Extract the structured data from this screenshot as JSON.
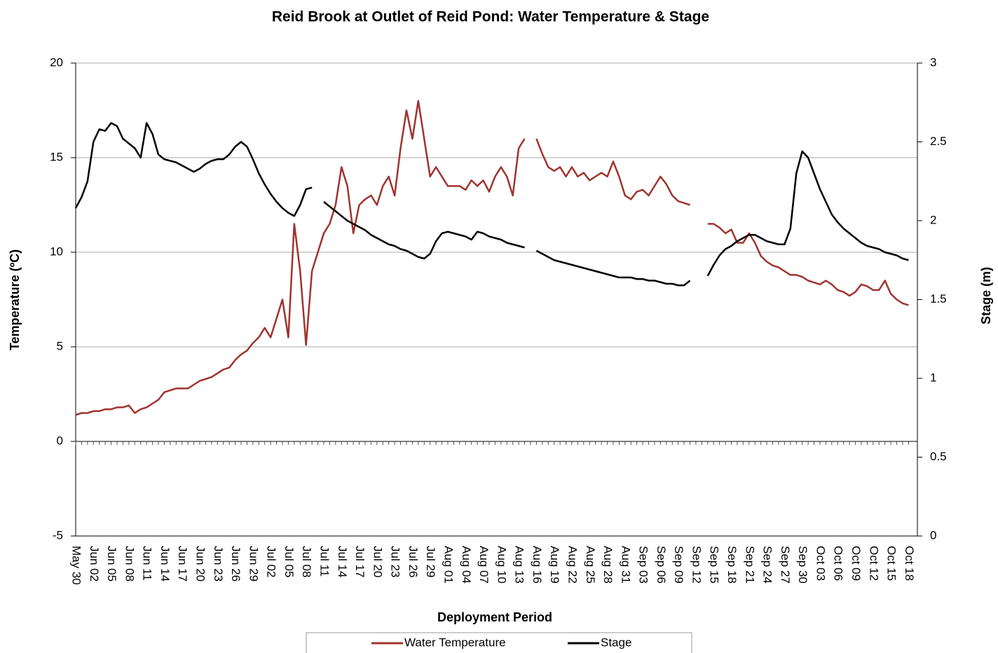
{
  "chart_data": {
    "type": "line",
    "title": "Reid Brook at Outlet of Reid Pond: Water Temperature & Stage",
    "x_label": "Deployment Period",
    "y_label": "Temperature (ºC)",
    "y2_label": "Stage (m)",
    "categories": [
      "May 30",
      null,
      null,
      "Jun 02",
      null,
      null,
      "Jun 05",
      null,
      null,
      "Jun 08",
      null,
      null,
      "Jun 11",
      null,
      null,
      "Jun 14",
      null,
      null,
      "Jun 17",
      null,
      null,
      "Jun 20",
      null,
      null,
      "Jun 23",
      null,
      null,
      "Jun 26",
      null,
      null,
      "Jun 29",
      null,
      null,
      "Jul 02",
      null,
      null,
      "Jul 05",
      null,
      null,
      "Jul 08",
      null,
      null,
      "Jul 11",
      null,
      null,
      "Jul 14",
      null,
      null,
      "Jul 17",
      null,
      null,
      "Jul 20",
      null,
      null,
      "Jul 23",
      null,
      null,
      "Jul 26",
      null,
      null,
      "Jul 29",
      null,
      null,
      "Aug 01",
      null,
      null,
      "Aug 04",
      null,
      null,
      "Aug 07",
      null,
      null,
      "Aug 10",
      null,
      null,
      "Aug 13",
      null,
      null,
      "Aug 16",
      null,
      null,
      "Aug 19",
      null,
      null,
      "Aug 22",
      null,
      null,
      "Aug 25",
      null,
      null,
      "Aug 28",
      null,
      null,
      "Aug 31",
      null,
      null,
      "Sep 03",
      null,
      null,
      "Sep 06",
      null,
      null,
      "Sep 09",
      null,
      null,
      "Sep 12",
      null,
      null,
      "Sep 15",
      null,
      null,
      "Sep 18",
      null,
      null,
      "Sep 21",
      null,
      null,
      "Sep 24",
      null,
      null,
      "Sep 27",
      null,
      null,
      "Sep 30",
      null,
      null,
      "Oct 03",
      null,
      null,
      "Oct 06",
      null,
      null,
      "Oct 09",
      null,
      null,
      "Oct 12",
      null,
      null,
      "Oct 15",
      null,
      null,
      "Oct 18"
    ],
    "series": [
      {
        "name": "Water Temperature",
        "color": "#a0332f",
        "axis": "y",
        "values": [
          1.4,
          1.5,
          1.5,
          1.6,
          1.6,
          1.7,
          1.7,
          1.8,
          1.8,
          1.9,
          1.5,
          1.7,
          1.8,
          2.0,
          2.2,
          2.6,
          2.7,
          2.8,
          2.8,
          2.8,
          3.0,
          3.2,
          3.3,
          3.4,
          3.6,
          3.8,
          3.9,
          4.3,
          4.6,
          4.8,
          5.2,
          5.5,
          6.0,
          5.5,
          6.5,
          7.5,
          5.5,
          11.5,
          9.0,
          5.1,
          9.0,
          10.0,
          11.0,
          11.5,
          12.5,
          14.5,
          13.5,
          11.0,
          12.5,
          12.8,
          13.0,
          12.5,
          13.5,
          14.0,
          13.0,
          15.5,
          17.5,
          16.0,
          18.0,
          16.0,
          14.0,
          14.5,
          14.0,
          13.5,
          13.5,
          13.5,
          13.3,
          13.8,
          13.5,
          13.8,
          13.2,
          14.0,
          14.5,
          14.0,
          13.0,
          15.5,
          16.0,
          null,
          16.0,
          15.2,
          14.5,
          14.3,
          14.5,
          14.0,
          14.5,
          14.0,
          14.2,
          13.8,
          14.0,
          14.2,
          14.0,
          14.8,
          14.0,
          13.0,
          12.8,
          13.2,
          13.3,
          13.0,
          13.5,
          14.0,
          13.6,
          13.0,
          12.7,
          12.6,
          12.5,
          null,
          null,
          11.5,
          11.5,
          11.3,
          11.0,
          11.2,
          10.5,
          10.5,
          11.0,
          10.5,
          9.8,
          9.5,
          9.3,
          9.2,
          9.0,
          8.8,
          8.8,
          8.7,
          8.5,
          8.4,
          8.3,
          8.5,
          8.3,
          8.0,
          7.9,
          7.7,
          7.9,
          8.3,
          8.2,
          8.0,
          8.0,
          8.5,
          7.8,
          7.5,
          7.3,
          7.2
        ]
      },
      {
        "name": "Stage",
        "color": "#000000",
        "axis": "y2",
        "values": [
          2.08,
          2.15,
          2.25,
          2.5,
          2.58,
          2.57,
          2.62,
          2.6,
          2.52,
          2.49,
          2.46,
          2.4,
          2.62,
          2.55,
          2.42,
          2.39,
          2.38,
          2.37,
          2.35,
          2.33,
          2.31,
          2.33,
          2.36,
          2.38,
          2.39,
          2.39,
          2.42,
          2.47,
          2.5,
          2.47,
          2.39,
          2.3,
          2.23,
          2.17,
          2.12,
          2.08,
          2.05,
          2.03,
          2.1,
          2.2,
          2.21,
          null,
          2.12,
          2.09,
          2.06,
          2.03,
          2.0,
          1.98,
          1.96,
          1.94,
          1.91,
          1.89,
          1.87,
          1.85,
          1.84,
          1.82,
          1.81,
          1.79,
          1.77,
          1.76,
          1.79,
          1.87,
          1.92,
          1.93,
          1.92,
          1.91,
          1.9,
          1.88,
          1.93,
          1.92,
          1.9,
          1.89,
          1.88,
          1.86,
          1.85,
          1.84,
          1.83,
          null,
          1.81,
          1.79,
          1.77,
          1.75,
          1.74,
          1.73,
          1.72,
          1.71,
          1.7,
          1.69,
          1.68,
          1.67,
          1.66,
          1.65,
          1.64,
          1.64,
          1.64,
          1.63,
          1.63,
          1.62,
          1.62,
          1.61,
          1.6,
          1.6,
          1.59,
          1.59,
          1.62,
          null,
          null,
          1.65,
          1.72,
          1.78,
          1.82,
          1.84,
          1.87,
          1.89,
          1.91,
          1.91,
          1.89,
          1.87,
          1.86,
          1.85,
          1.85,
          1.95,
          2.3,
          2.44,
          2.4,
          2.3,
          2.2,
          2.12,
          2.04,
          1.99,
          1.95,
          1.92,
          1.89,
          1.86,
          1.84,
          1.83,
          1.82,
          1.8,
          1.79,
          1.78,
          1.76,
          1.75
        ]
      }
    ],
    "ylim": [
      -5,
      20
    ],
    "yticks": [
      -5,
      0,
      5,
      10,
      15,
      20
    ],
    "y2lim": [
      0,
      3
    ],
    "y2ticks": [
      0,
      0.5,
      1,
      1.5,
      2,
      2.5,
      3
    ],
    "grid": true,
    "legend": "bottom"
  }
}
